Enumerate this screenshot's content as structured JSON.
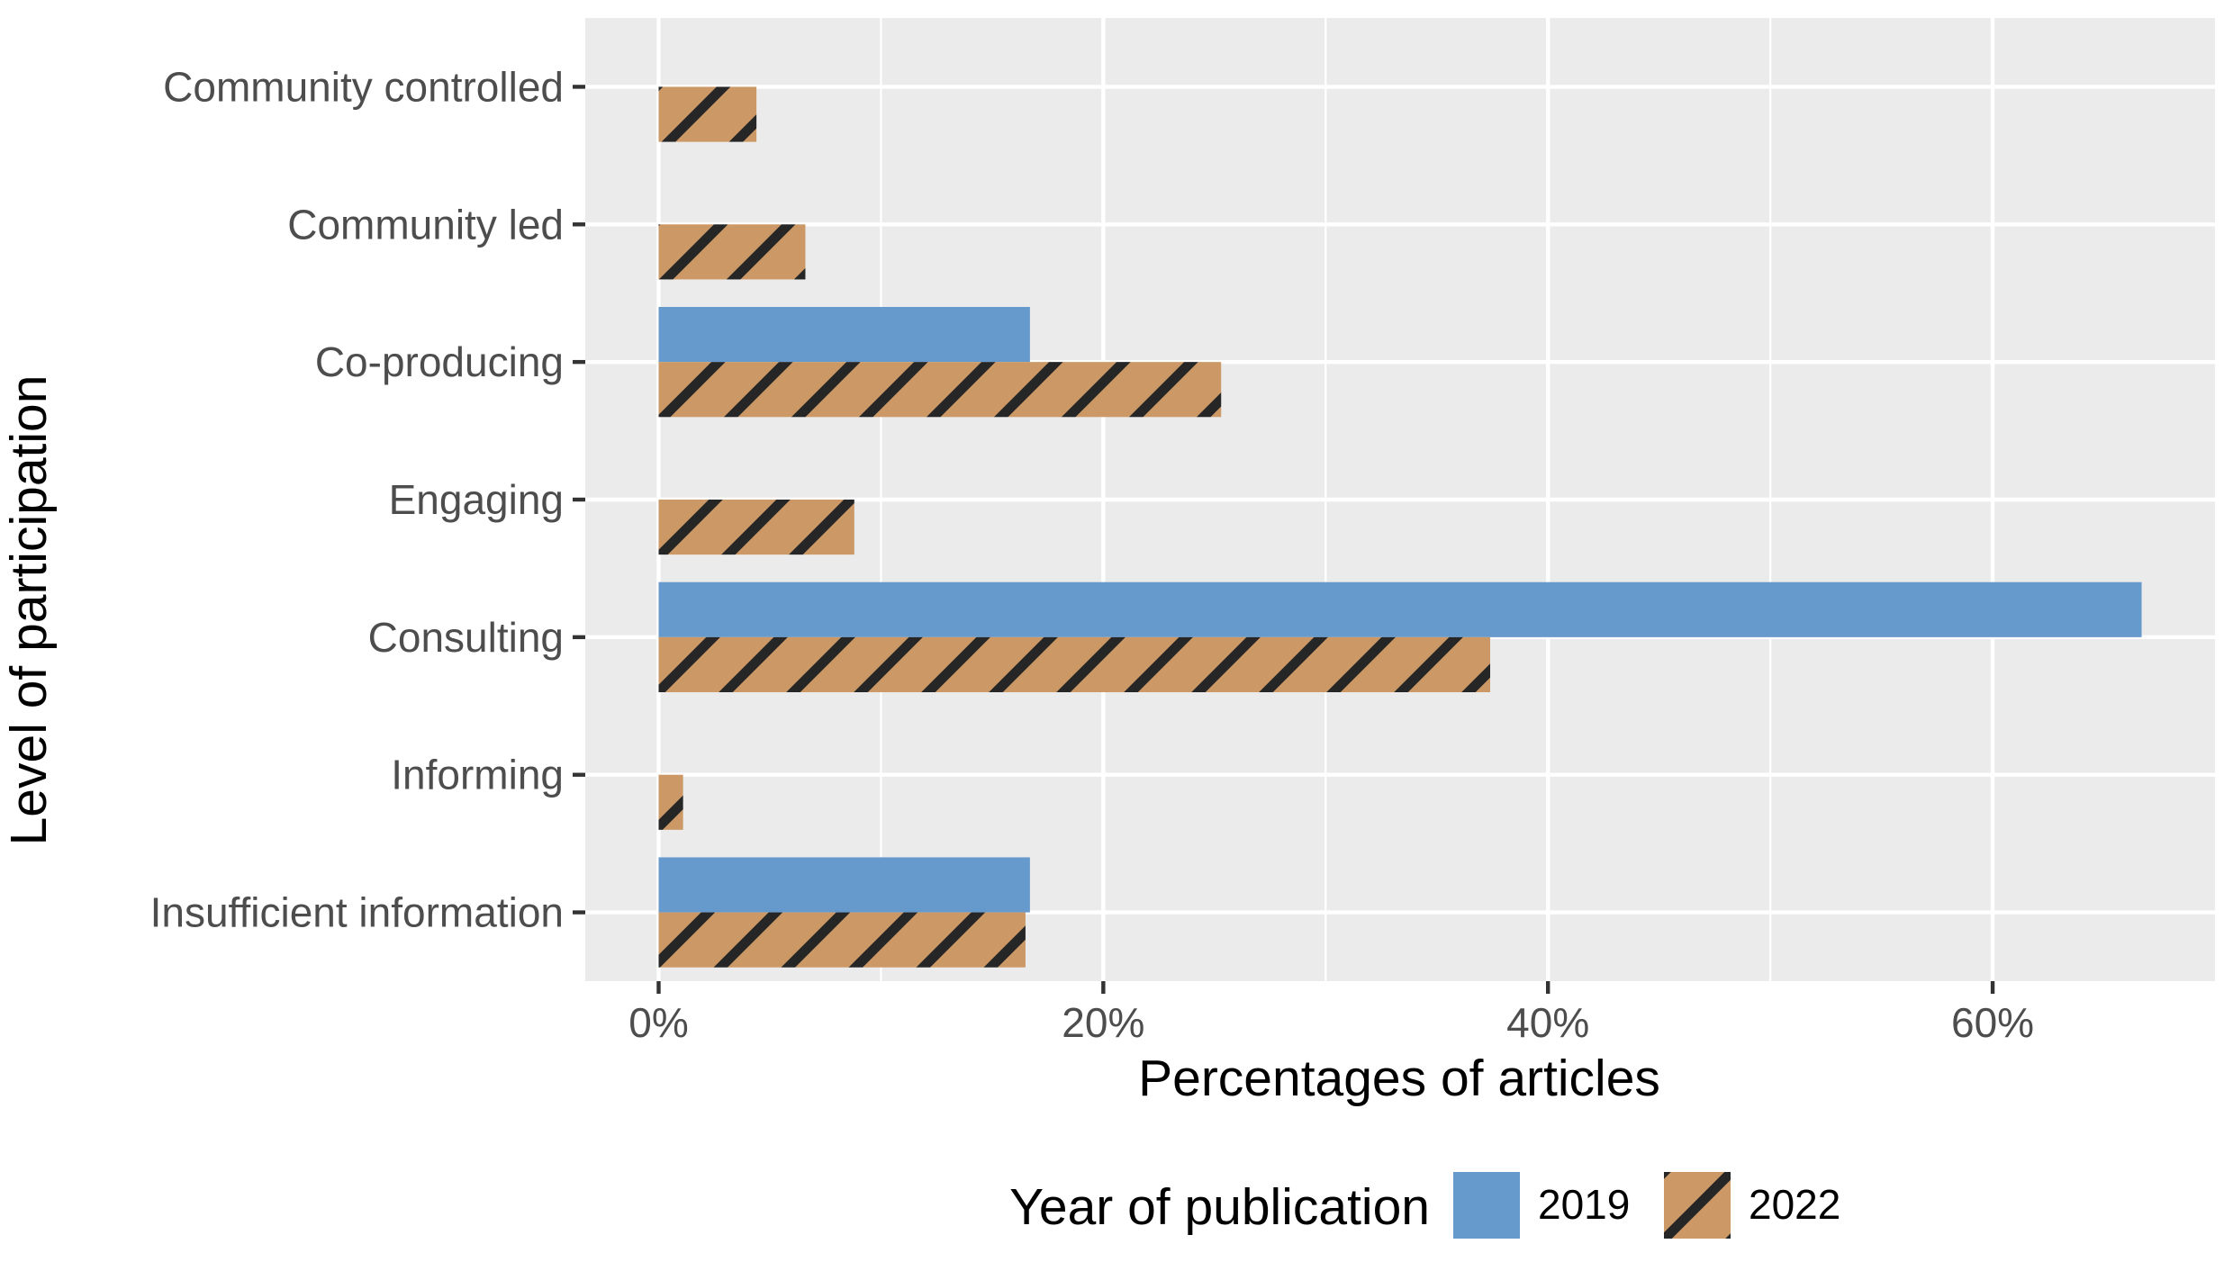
{
  "chart_data": {
    "type": "bar",
    "orientation": "horizontal",
    "categories": [
      "Community controlled",
      "Community led",
      "Co-producing",
      "Engaging",
      "Consulting",
      "Informing",
      "Insufficient information"
    ],
    "series": [
      {
        "name": "2019",
        "color": "#6699CC",
        "pattern": "none",
        "values": [
          0,
          0,
          16.7,
          0,
          66.7,
          0,
          16.7
        ]
      },
      {
        "name": "2022",
        "color": "#CC9966",
        "pattern": "stripe",
        "values": [
          4.4,
          6.6,
          25.3,
          8.8,
          37.4,
          1.1,
          16.5
        ]
      }
    ],
    "title": "",
    "xlabel": "Percentages of articles",
    "ylabel": "Level of participation",
    "xlim": [
      -3.3,
      70
    ],
    "xticks": [
      0,
      20,
      40,
      60
    ],
    "xtick_labels": [
      "0%",
      "20%",
      "40%",
      "60%"
    ],
    "grid": true,
    "legend": {
      "title": "Year of publication",
      "position": "bottom",
      "entries": [
        "2019",
        "2022"
      ]
    }
  }
}
